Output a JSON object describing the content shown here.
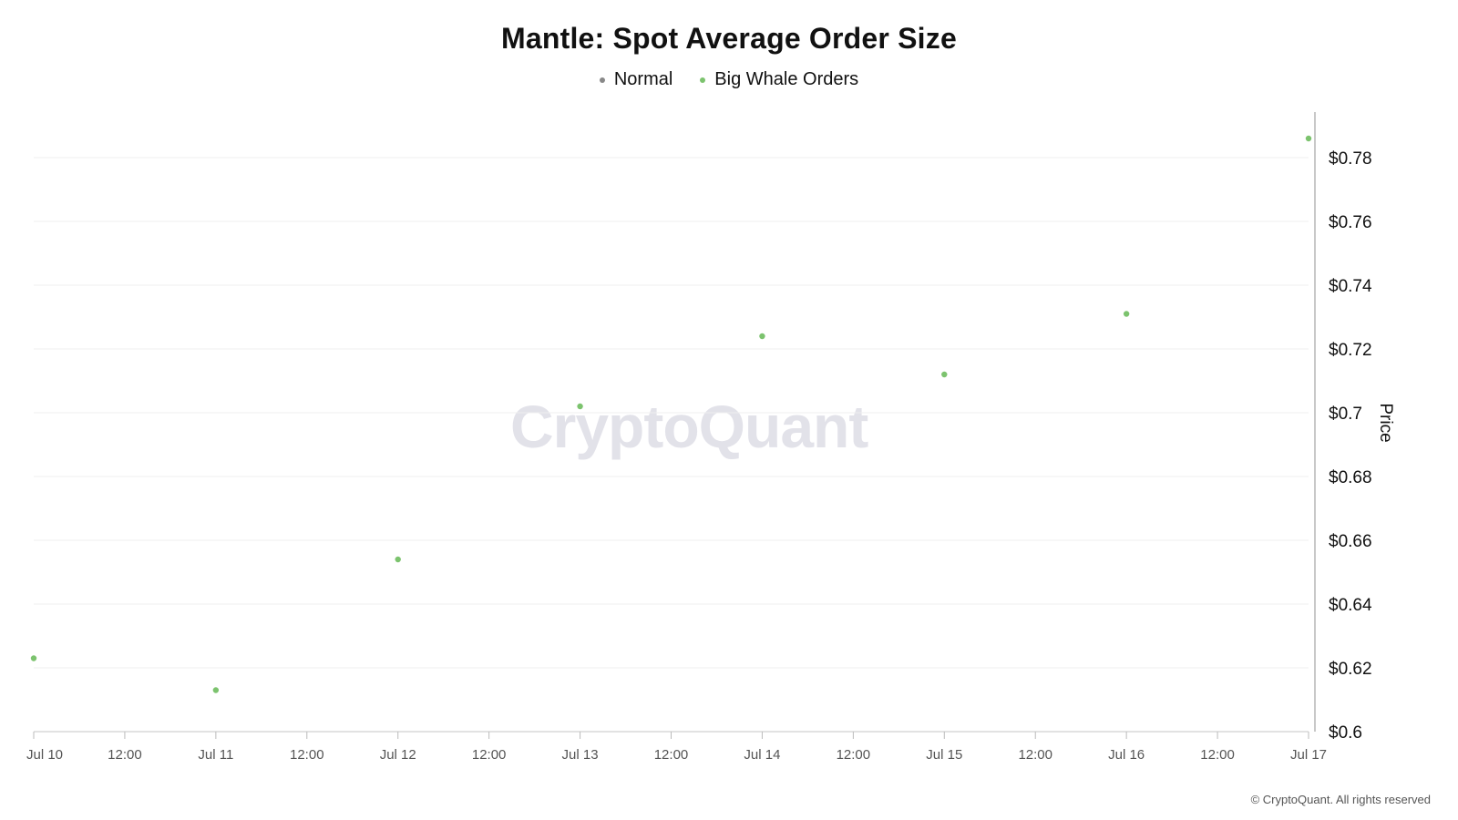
{
  "chart_data": {
    "type": "scatter",
    "title": "Mantle: Spot Average Order Size",
    "xlabel": "",
    "ylabel": "Price",
    "ylim": [
      0.6,
      0.79
    ],
    "grid": true,
    "legend_position": "top-center",
    "x_tick_labels": [
      "Jul 10",
      "12:00",
      "Jul 11",
      "12:00",
      "Jul 12",
      "12:00",
      "Jul 13",
      "12:00",
      "Jul 14",
      "12:00",
      "Jul 15",
      "12:00",
      "Jul 16",
      "12:00",
      "Jul 17"
    ],
    "y_tick_labels": [
      "$0.6",
      "$0.62",
      "$0.64",
      "$0.66",
      "$0.68",
      "$0.7",
      "$0.72",
      "$0.74",
      "$0.76",
      "$0.78"
    ],
    "y_ticks": [
      0.6,
      0.62,
      0.64,
      0.66,
      0.68,
      0.7,
      0.72,
      0.74,
      0.76,
      0.78
    ],
    "series": [
      {
        "name": "Normal",
        "color": "#888888",
        "x": [],
        "y": []
      },
      {
        "name": "Big Whale Orders",
        "color": "#7cc36e",
        "x": [
          "Jul 10",
          "Jul 11",
          "Jul 12",
          "Jul 13",
          "Jul 14",
          "Jul 15",
          "Jul 16",
          "Jul 17"
        ],
        "y": [
          0.623,
          0.613,
          0.654,
          0.702,
          0.724,
          0.712,
          0.731,
          0.786
        ]
      }
    ]
  },
  "watermark": "CryptoQuant",
  "copyright": "© CryptoQuant. All rights reserved"
}
